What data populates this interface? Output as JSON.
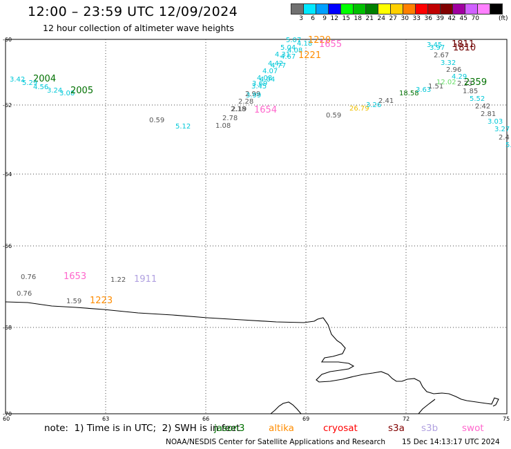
{
  "header": {
    "title": "12:00 – 23:59 UTC 12/09/2024",
    "subtitle": "12 hour collection of altimeter wave heights"
  },
  "legend": {
    "unit": "(ft)",
    "bins": [
      {
        "label": "3",
        "color": "#707070"
      },
      {
        "label": "6",
        "color": "#00e8ff"
      },
      {
        "label": "9",
        "color": "#00a0ff"
      },
      {
        "label": "12",
        "color": "#0000ff"
      },
      {
        "label": "15",
        "color": "#00ff00"
      },
      {
        "label": "18",
        "color": "#00c000"
      },
      {
        "label": "21",
        "color": "#008000"
      },
      {
        "label": "24",
        "color": "#ffff00"
      },
      {
        "label": "27",
        "color": "#ffd000"
      },
      {
        "label": "30",
        "color": "#ff8000"
      },
      {
        "label": "33",
        "color": "#ff0000"
      },
      {
        "label": "36",
        "color": "#c00000"
      },
      {
        "label": "39",
        "color": "#800000"
      },
      {
        "label": "42",
        "color": "#a000a0"
      },
      {
        "label": "45",
        "color": "#d060ff"
      },
      {
        "label": "70",
        "color": "#ff80ff"
      },
      {
        "label": "",
        "color": "#000000"
      }
    ]
  },
  "map": {
    "lon_ticks": [
      "60",
      "63",
      "66",
      "69",
      "72",
      "75"
    ],
    "lat_ticks": [
      "-60",
      "-62",
      "-64",
      "-66",
      "-68",
      "-70"
    ]
  },
  "labels": [
    {
      "text": "3.42",
      "color": "#00c8d8"
    },
    {
      "text": "2004",
      "color": "#007000"
    },
    {
      "text": "5.29",
      "color": "#00c8d8"
    },
    {
      "text": "4.56",
      "color": "#00c8d8"
    },
    {
      "text": "3.24",
      "color": "#00c8d8"
    },
    {
      "text": "3.08",
      "color": "#00c8d8"
    },
    {
      "text": "2005",
      "color": "#007000"
    },
    {
      "text": "0.59",
      "color": "#555555"
    },
    {
      "text": "5.12",
      "color": "#00c8d8"
    },
    {
      "text": "1.08",
      "color": "#555555"
    },
    {
      "text": "2.78",
      "color": "#555555"
    },
    {
      "text": "2.18",
      "color": "#555555"
    },
    {
      "text": "2.19",
      "color": "#555555"
    },
    {
      "text": "2.28",
      "color": "#555555"
    },
    {
      "text": "2.99",
      "color": "#555555"
    },
    {
      "text": "1654",
      "color": "#ff66cc"
    },
    {
      "text": "3.99",
      "color": "#00c8d8"
    },
    {
      "text": "3.45",
      "color": "#00c8d8"
    },
    {
      "text": "3.69",
      "color": "#00c8d8"
    },
    {
      "text": "4.08",
      "color": "#00c8d8"
    },
    {
      "text": "4.04",
      "color": "#00c8d8"
    },
    {
      "text": "4.07",
      "color": "#00c8d8"
    },
    {
      "text": "4.77",
      "color": "#00c8d8"
    },
    {
      "text": "4.42",
      "color": "#00c8d8"
    },
    {
      "text": "4.31",
      "color": "#00c8d8"
    },
    {
      "text": "4.67",
      "color": "#00c8d8"
    },
    {
      "text": "4.08",
      "color": "#00c8d8"
    },
    {
      "text": "5.04",
      "color": "#00c8d8"
    },
    {
      "text": "5.07",
      "color": "#00c8d8"
    },
    {
      "text": "4.18",
      "color": "#00c8d8"
    },
    {
      "text": "1221",
      "color": "#ff8c00"
    },
    {
      "text": "1220",
      "color": "#ff8c00"
    },
    {
      "text": "1655",
      "color": "#ff66cc"
    },
    {
      "text": "0.59",
      "color": "#555555"
    },
    {
      "text": "26.79",
      "color": "#f0c000"
    },
    {
      "text": "3.26",
      "color": "#00c8d8"
    },
    {
      "text": "2.41",
      "color": "#555555"
    },
    {
      "text": "18.58",
      "color": "#007000"
    },
    {
      "text": "3.63",
      "color": "#00c8d8"
    },
    {
      "text": "1.51",
      "color": "#555555"
    },
    {
      "text": "12.02",
      "color": "#66dd66"
    },
    {
      "text": "3.45",
      "color": "#00c8d8"
    },
    {
      "text": "3.97",
      "color": "#00c8d8"
    },
    {
      "text": "1811",
      "color": "#700000"
    },
    {
      "text": "1810",
      "color": "#700000"
    },
    {
      "text": "2.67",
      "color": "#555555"
    },
    {
      "text": "3.32",
      "color": "#00c8d8"
    },
    {
      "text": "2.96",
      "color": "#555555"
    },
    {
      "text": "4.29",
      "color": "#00c8d8"
    },
    {
      "text": "2.23",
      "color": "#555555"
    },
    {
      "text": "2359",
      "color": "#007000"
    },
    {
      "text": "1.85",
      "color": "#555555"
    },
    {
      "text": "5.52",
      "color": "#00c8d8"
    },
    {
      "text": "2.42",
      "color": "#555555"
    },
    {
      "text": "2.81",
      "color": "#555555"
    },
    {
      "text": "3.03",
      "color": "#00c8d8"
    },
    {
      "text": "3.27",
      "color": "#00c8d8"
    },
    {
      "text": "2.4",
      "color": "#555555"
    },
    {
      "text": "5.",
      "color": "#00c8d8"
    },
    {
      "text": "0.76",
      "color": "#555555"
    },
    {
      "text": "1653",
      "color": "#ff66cc"
    },
    {
      "text": "1.22",
      "color": "#555555"
    },
    {
      "text": "1911",
      "color": "#b0a0e0"
    },
    {
      "text": "0.76",
      "color": "#555555"
    },
    {
      "text": "1.59",
      "color": "#555555"
    },
    {
      "text": "1223",
      "color": "#ff8c00"
    }
  ],
  "note": "note:  1) Time is in UTC;  2) SWH is in feet",
  "satellites": [
    {
      "name": "jason3",
      "color": "#007000"
    },
    {
      "name": "altika",
      "color": "#ff8c00"
    },
    {
      "name": "cryosat",
      "color": "#ff0000"
    },
    {
      "name": "s3a",
      "color": "#800000"
    },
    {
      "name": "s3b",
      "color": "#b0a0e0"
    },
    {
      "name": "swot",
      "color": "#ff66cc"
    }
  ],
  "footer": {
    "credit": "NOAA/NESDIS Center for Satellite Applications and Research",
    "timestamp": "15 Dec 14:13:17 UTC 2024"
  }
}
